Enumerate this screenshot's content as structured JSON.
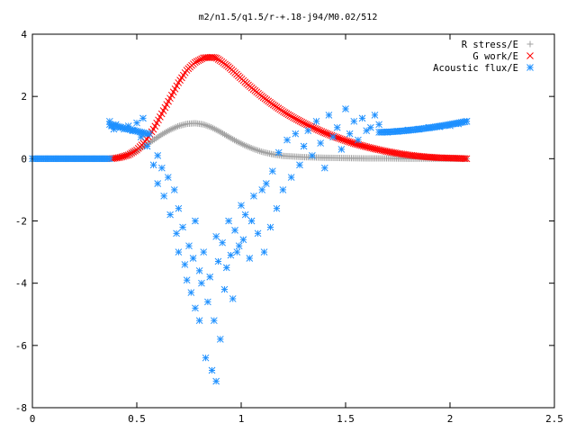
{
  "chart_data": {
    "type": "scatter",
    "title": "m2/n1.5/q1.5/r-+.18-j94/M0.02/512",
    "xlabel": "",
    "ylabel": "",
    "xlim": [
      0,
      2.5
    ],
    "ylim": [
      -8,
      4
    ],
    "x_ticks": [
      "0",
      "0.5",
      "1",
      "1.5",
      "2",
      "2.5"
    ],
    "y_ticks": [
      "4",
      "2",
      "0",
      "-2",
      "-4",
      "-6",
      "-8"
    ],
    "legend_position": "top-right",
    "series": [
      {
        "name": "R stress/E",
        "marker": "plus",
        "color": "#a0a0a0",
        "x": [
          0.0,
          0.1,
          0.2,
          0.3,
          0.38,
          0.42,
          0.46,
          0.5,
          0.54,
          0.58,
          0.62,
          0.66,
          0.7,
          0.74,
          0.78,
          0.82,
          0.86,
          0.9,
          0.94,
          0.98,
          1.02,
          1.06,
          1.1,
          1.15,
          1.2,
          1.3,
          1.4,
          1.5,
          1.6,
          1.7,
          1.8,
          1.9,
          2.0,
          2.08
        ],
        "y": [
          0.0,
          0.0,
          0.0,
          0.0,
          0.0,
          0.06,
          0.14,
          0.26,
          0.42,
          0.6,
          0.78,
          0.93,
          1.05,
          1.12,
          1.14,
          1.1,
          1.0,
          0.86,
          0.7,
          0.55,
          0.42,
          0.31,
          0.22,
          0.14,
          0.09,
          0.05,
          0.03,
          0.02,
          0.01,
          0.01,
          0.0,
          0.0,
          0.0,
          0.0
        ]
      },
      {
        "name": "G work/E",
        "marker": "cross",
        "color": "#ff0000",
        "x": [
          0.38,
          0.42,
          0.46,
          0.5,
          0.54,
          0.58,
          0.62,
          0.66,
          0.7,
          0.74,
          0.78,
          0.82,
          0.86,
          0.88,
          0.9,
          0.94,
          0.98,
          1.02,
          1.06,
          1.1,
          1.15,
          1.2,
          1.25,
          1.3,
          1.35,
          1.4,
          1.45,
          1.5,
          1.55,
          1.6,
          1.65,
          1.7,
          1.75,
          1.8,
          1.85,
          1.9,
          1.95,
          2.0,
          2.05,
          2.08
        ],
        "y": [
          0.0,
          0.04,
          0.12,
          0.28,
          0.55,
          0.95,
          1.45,
          1.95,
          2.45,
          2.85,
          3.1,
          3.24,
          3.26,
          3.24,
          3.15,
          2.95,
          2.7,
          2.45,
          2.22,
          2.0,
          1.75,
          1.52,
          1.32,
          1.14,
          0.98,
          0.83,
          0.7,
          0.58,
          0.47,
          0.38,
          0.3,
          0.23,
          0.17,
          0.12,
          0.08,
          0.05,
          0.03,
          0.02,
          0.01,
          0.0
        ]
      },
      {
        "name": "Acoustic flux/E",
        "marker": "star",
        "color": "#1e90ff",
        "x": [
          0.0,
          0.08,
          0.16,
          0.24,
          0.32,
          0.37,
          0.38,
          0.39,
          0.4,
          0.42,
          0.44,
          0.46,
          0.48,
          0.5,
          0.52,
          0.53,
          0.55,
          0.56,
          0.58,
          0.6,
          0.6,
          0.62,
          0.63,
          0.65,
          0.66,
          0.68,
          0.69,
          0.7,
          0.7,
          0.72,
          0.73,
          0.74,
          0.75,
          0.76,
          0.77,
          0.78,
          0.78,
          0.8,
          0.8,
          0.81,
          0.82,
          0.83,
          0.84,
          0.85,
          0.86,
          0.87,
          0.88,
          0.88,
          0.89,
          0.9,
          0.91,
          0.92,
          0.93,
          0.94,
          0.95,
          0.96,
          0.97,
          0.98,
          0.99,
          1.0,
          1.01,
          1.02,
          1.04,
          1.05,
          1.06,
          1.08,
          1.1,
          1.11,
          1.12,
          1.14,
          1.15,
          1.17,
          1.18,
          1.2,
          1.22,
          1.24,
          1.26,
          1.28,
          1.3,
          1.32,
          1.34,
          1.36,
          1.38,
          1.4,
          1.42,
          1.44,
          1.46,
          1.48,
          1.5,
          1.52,
          1.54,
          1.56,
          1.58,
          1.6,
          1.62,
          1.64,
          1.66,
          1.7,
          1.75,
          1.8,
          1.85,
          1.9,
          1.95,
          2.0,
          2.04,
          2.08
        ],
        "y": [
          0.0,
          0.0,
          0.0,
          0.0,
          0.0,
          1.2,
          1.05,
          0.95,
          1.1,
          1.0,
          0.95,
          1.05,
          0.9,
          1.15,
          0.7,
          1.3,
          0.4,
          0.8,
          -0.2,
          0.1,
          -0.8,
          -0.3,
          -1.2,
          -0.6,
          -1.8,
          -1.0,
          -2.4,
          -1.6,
          -3.0,
          -2.2,
          -3.4,
          -3.9,
          -2.8,
          -4.3,
          -3.2,
          -4.8,
          -2.0,
          -5.2,
          -3.6,
          -4.0,
          -3.0,
          -6.4,
          -4.6,
          -3.8,
          -6.8,
          -5.2,
          -2.5,
          -7.15,
          -3.3,
          -5.8,
          -2.7,
          -4.2,
          -3.5,
          -2.0,
          -3.1,
          -4.5,
          -2.3,
          -3.0,
          -2.8,
          -1.5,
          -2.6,
          -1.8,
          -3.2,
          -2.0,
          -1.2,
          -2.4,
          -1.0,
          -3.0,
          -0.8,
          -2.2,
          -0.4,
          -1.6,
          0.2,
          -1.0,
          0.6,
          -0.6,
          0.8,
          -0.2,
          0.4,
          0.9,
          0.1,
          1.2,
          0.5,
          -0.3,
          1.4,
          0.7,
          1.0,
          0.3,
          1.6,
          0.8,
          1.2,
          0.6,
          1.3,
          0.9,
          1.0,
          1.4,
          1.1,
          0.85,
          0.88,
          0.92,
          0.95,
          1.0,
          1.03,
          1.06,
          1.12,
          1.2
        ]
      }
    ]
  }
}
